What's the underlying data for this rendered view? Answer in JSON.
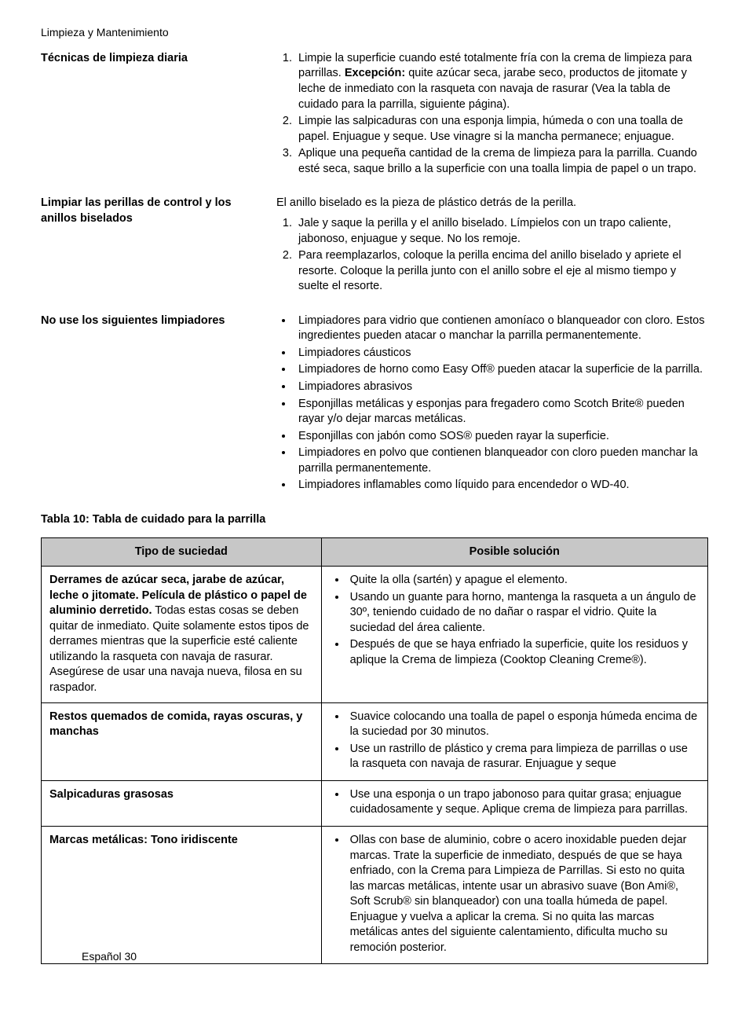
{
  "breadcrumb": "Limpieza y Mantenimiento",
  "sections": [
    {
      "label": "Técnicas de limpieza diaria",
      "intro": "",
      "ol": [
        {
          "pre": "Limpie la superficie cuando esté totalmente fría con la crema de limpieza para parrillas. ",
          "bold": "Excepción:",
          "post": " quite azúcar seca, jarabe seco, productos de jitomate y leche de inmediato con la rasqueta con navaja de rasurar (Vea la tabla de cuidado para la parrilla, siguiente página)."
        },
        {
          "pre": "Limpie las salpicaduras con una esponja limpia, húmeda o con una toalla de papel. Enjuague y seque. Use vinagre si la mancha permanece; enjuague.",
          "bold": "",
          "post": ""
        },
        {
          "pre": "Aplique una pequeña cantidad de la crema de limpieza para la parrilla. Cuando esté seca, saque brillo a la superficie con una toalla limpia de papel o un trapo.",
          "bold": "",
          "post": ""
        }
      ]
    },
    {
      "label": "Limpiar las perillas de control y los anillos biselados",
      "intro": "El anillo biselado es la pieza de plástico detrás de la perilla.",
      "ol": [
        {
          "pre": "Jale y saque la perilla y el anillo biselado. Límpielos con un trapo caliente, jabonoso, enjuague y seque. No los remoje.",
          "bold": "",
          "post": ""
        },
        {
          "pre": "Para reemplazarlos, coloque la perilla encima del anillo biselado y apriete el resorte. Coloque la perilla junto con el anillo sobre el eje al mismo tiempo y suelte el resorte.",
          "bold": "",
          "post": ""
        }
      ]
    },
    {
      "label": "No use los siguientes limpiadores",
      "intro": "",
      "ul": [
        "Limpiadores para vidrio que contienen amoníaco o blanqueador con cloro. Estos ingredientes pueden atacar o manchar la parrilla permanentemente.",
        "Limpiadores cáusticos",
        "Limpiadores de horno como Easy Off® pueden atacar la superficie de la parrilla.",
        "Limpiadores abrasivos",
        "Esponjillas metálicas y esponjas para fregadero como Scotch Brite® pueden rayar y/o dejar marcas metálicas.",
        "Esponjillas con jabón como SOS® pueden rayar la superficie.",
        "Limpiadores en polvo que contienen blanqueador con cloro pueden manchar la parrilla permanentemente.",
        "Limpiadores inflamables como líquido para encendedor o WD-40."
      ]
    }
  ],
  "table": {
    "title": "Tabla 10: Tabla de cuidado para la parrilla",
    "columns": [
      "Tipo de suciedad",
      "Posible solución"
    ],
    "header_bg": "#c7c7c7",
    "rows": [
      {
        "soil_bold": "Derrames de azúcar seca, jarabe de azúcar, leche o jitomate. Película de plástico o papel de aluminio derretido.",
        "soil_rest": " Todas estas cosas se deben quitar de inmediato. Quite solamente estos tipos de derrames mientras que la superficie esté caliente utilizando la rasqueta con navaja de rasurar. Asegúrese de usar una navaja nueva, filosa en su raspador.",
        "sol": [
          "Quite la olla (sartén) y apague el elemento.",
          "Usando un guante para horno, mantenga la rasqueta a un ángulo de 30º, teniendo cuidado de no dañar o raspar el vidrio. Quite la suciedad del área caliente.",
          "Después de que se haya enfriado la superficie, quite los residuos y aplique la Crema de limpieza (Cooktop Cleaning Creme®)."
        ]
      },
      {
        "soil_bold": "Restos quemados de comida, rayas oscuras, y manchas",
        "soil_rest": "",
        "sol": [
          "Suavice colocando una toalla de papel o esponja húmeda encima de la suciedad por 30 minutos.",
          "Use un rastrillo de plástico y crema para limpieza de parrillas o use la rasqueta con navaja de rasurar. Enjuague y seque"
        ]
      },
      {
        "soil_bold": "Salpicaduras grasosas",
        "soil_rest": "",
        "sol": [
          "Use una esponja o un trapo jabonoso para quitar grasa; enjuague cuidadosamente y seque. Aplique crema de limpieza para parrillas."
        ]
      },
      {
        "soil_bold": "Marcas metálicas: Tono iridiscente",
        "soil_rest": "",
        "sol": [
          "Ollas con base de aluminio, cobre o acero inoxidable pueden dejar marcas. Trate la superficie de inmediato, después de que se haya enfriado, con la Crema para Limpieza de Parrillas. Si esto no quita las marcas metálicas, intente usar un abrasivo suave (Bon Ami®, Soft Scrub® sin blanqueador) con una toalla húmeda de papel. Enjuague y vuelva a aplicar la crema. Si no quita las marcas metálicas antes del siguiente calentamiento, dificulta mucho su remoción posterior."
        ]
      }
    ]
  },
  "footer": "Español 30"
}
